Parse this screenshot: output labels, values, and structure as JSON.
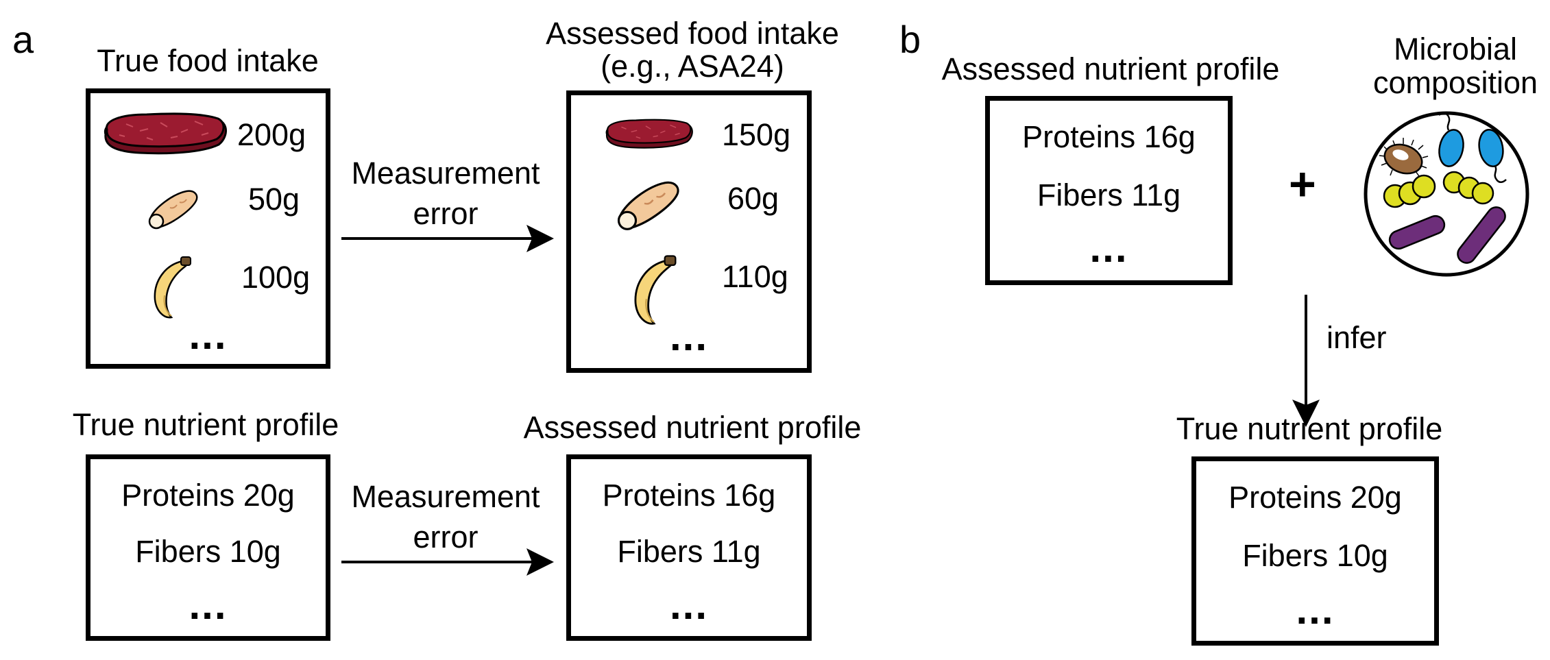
{
  "panel_a": {
    "letter": "a",
    "true_food": {
      "title": "True food intake",
      "items": [
        {
          "icon": "meat-icon",
          "amount": "200g"
        },
        {
          "icon": "bread-icon",
          "amount": "50g"
        },
        {
          "icon": "banana-icon",
          "amount": "100g"
        }
      ],
      "ellipsis": "..."
    },
    "arrow_top": {
      "line1": "Measurement",
      "line2": "error"
    },
    "assessed_food": {
      "title_line1": "Assessed food intake",
      "title_line2": "(e.g., ASA24)",
      "items": [
        {
          "icon": "meat-icon",
          "amount": "150g"
        },
        {
          "icon": "bread-icon",
          "amount": "60g"
        },
        {
          "icon": "banana-icon",
          "amount": "110g"
        }
      ],
      "ellipsis": "..."
    },
    "true_nutrient": {
      "title": "True nutrient profile",
      "lines": [
        "Proteins 20g",
        "Fibers 10g"
      ],
      "ellipsis": "..."
    },
    "arrow_bottom": {
      "line1": "Measurement",
      "line2": "error"
    },
    "assessed_nutrient": {
      "title": "Assessed nutrient profile",
      "lines": [
        "Proteins 16g",
        "Fibers 11g"
      ],
      "ellipsis": "..."
    }
  },
  "panel_b": {
    "letter": "b",
    "assessed_nutrient": {
      "title": "Assessed nutrient profile",
      "lines": [
        "Proteins 16g",
        "Fibers 11g"
      ],
      "ellipsis": "..."
    },
    "plus": "+",
    "microbial": {
      "title_line1": "Microbial",
      "title_line2": "composition",
      "icon": "microbes-icon"
    },
    "arrow_label": "infer",
    "true_nutrient": {
      "title": "True nutrient profile",
      "lines": [
        "Proteins 20g",
        "Fibers 10g"
      ],
      "ellipsis": "..."
    }
  },
  "colors": {
    "meat": "#9b1b30",
    "meat_dark": "#6e0f1f",
    "bread": "#f3c99b",
    "banana": "#f6d57a",
    "bacteria_blue": "#1e9be0",
    "bacteria_yellow": "#dede22",
    "bacteria_purple": "#6d2e7a",
    "bacteria_brown": "#9a6a3e"
  }
}
